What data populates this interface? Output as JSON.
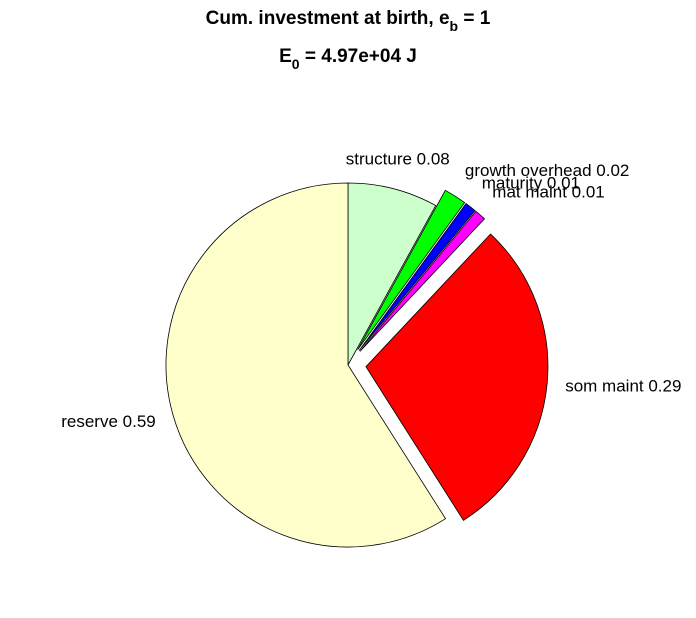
{
  "chart_data": {
    "type": "pie",
    "title": {
      "text": "Cum. investment at birth, e",
      "sub": "b",
      "tail": " = 1"
    },
    "subtitle": {
      "text": "E",
      "sub": "0",
      "tail": " = 4.97e+04 J"
    },
    "labels": [
      "structure 0.08",
      "growth overhead 0.02",
      "maturity 0.01",
      "mat maint 0.01",
      "som maint 0.29",
      "reserve 0.59"
    ],
    "values": [
      0.08,
      0.02,
      0.01,
      0.01,
      0.29,
      0.59
    ],
    "colors": [
      "#ccffcc",
      "#00ff00",
      "#0000ff",
      "#ff00ff",
      "#ff0000",
      "#ffffcc"
    ],
    "explode": [
      false,
      true,
      true,
      true,
      true,
      false
    ]
  }
}
